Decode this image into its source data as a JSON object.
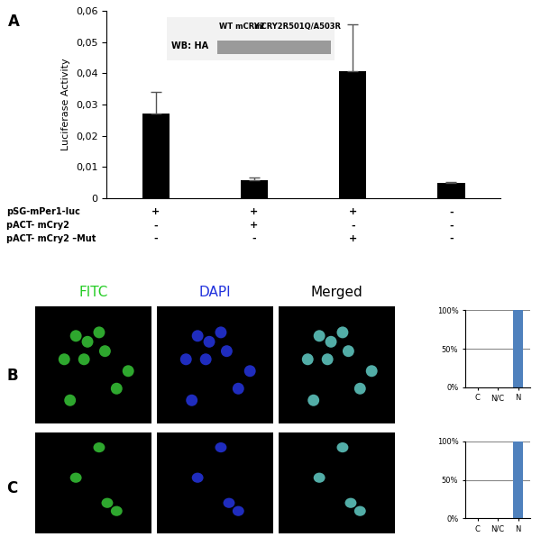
{
  "panel_labels": [
    "A",
    "B",
    "C"
  ],
  "image_headers": [
    "FITC",
    "DAPI",
    "Merged"
  ],
  "chart_data": [
    {
      "type": "bar",
      "y_label": "Luciferase Activity",
      "categories": [
        null,
        null,
        null,
        null
      ],
      "values": [
        0.027,
        0.0058,
        0.0407,
        0.0048
      ],
      "error": [
        0.007,
        0.0007,
        0.015,
        0.0003
      ],
      "color": "#000000",
      "ylim": [
        0,
        0.06
      ],
      "yticks": [
        0,
        {
          "value": 0.01,
          "label": "0,01"
        },
        {
          "value": 0.02,
          "label": "0,02"
        },
        {
          "value": 0.03,
          "label": "0,03"
        },
        {
          "value": 0.04,
          "label": "0,04"
        },
        {
          "value": 0.05,
          "label": "0,05"
        },
        {
          "value": 0.06,
          "label": "0,06"
        }
      ],
      "conditions": [
        {
          "name": "pSG-mPer1-luc",
          "marks": [
            "+",
            "+",
            "+",
            "-"
          ]
        },
        {
          "name": "pACT- mCry2",
          "marks": [
            "-",
            "+",
            "-",
            "-"
          ]
        },
        {
          "name": "pACT- mCry2 –Mut",
          "marks": [
            "-",
            "-",
            "+",
            "-"
          ]
        }
      ],
      "inset": {
        "label": "WB: HA",
        "lanes": [
          "WT mCRY2",
          "mCRY2R501Q/A503R"
        ]
      }
    },
    {
      "type": "bar",
      "categories": [
        "C",
        "N/C",
        "N"
      ],
      "values": [
        0,
        0,
        100
      ],
      "color": "#4f81bd",
      "ylim": [
        0,
        100
      ],
      "yticks": [
        {
          "value": 0,
          "label": "0%"
        },
        {
          "value": 50,
          "label": "50%"
        },
        {
          "value": 100,
          "label": "100%"
        }
      ],
      "grid": true
    },
    {
      "type": "bar",
      "categories": [
        "C",
        "N/C",
        "N"
      ],
      "values": [
        0,
        0,
        100
      ],
      "color": "#4f81bd",
      "ylim": [
        0,
        100
      ],
      "yticks": [
        {
          "value": 0,
          "label": "0%"
        },
        {
          "value": 50,
          "label": "50%"
        },
        {
          "value": 100,
          "label": "100%"
        }
      ],
      "grid": true
    }
  ]
}
